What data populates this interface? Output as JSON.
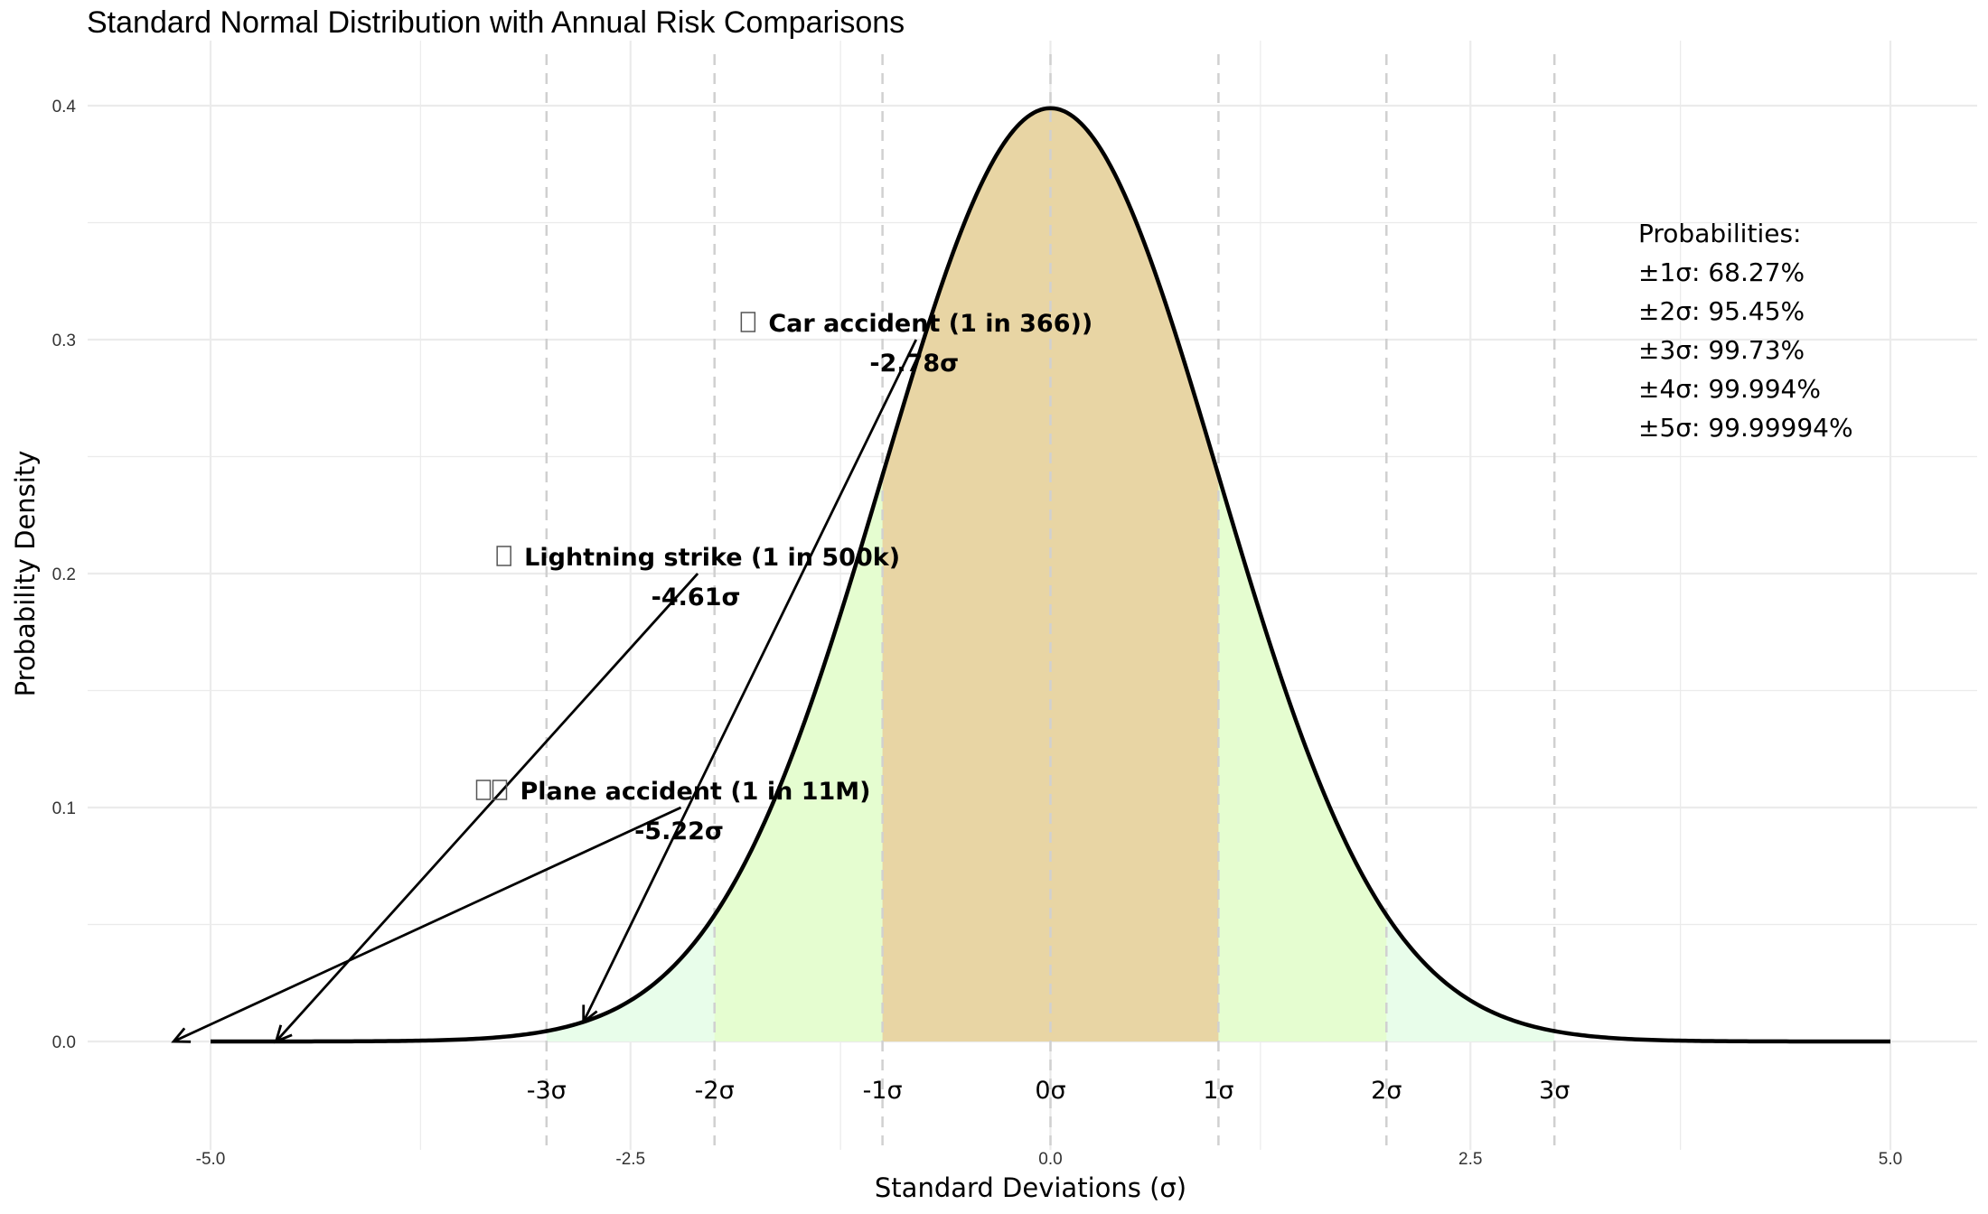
{
  "chart_data": {
    "type": "area",
    "title": "Standard Normal Distribution with Annual Risk Comparisons",
    "xlabel": "Standard Deviations (σ)",
    "ylabel": "Probability Density",
    "xlim": [
      -5,
      5
    ],
    "ylim": [
      0,
      0.4
    ],
    "x_ticks": [
      -5.0,
      -2.5,
      0.0,
      2.5,
      5.0
    ],
    "x_tick_labels": [
      "-5.0",
      "-2.5",
      "0.0",
      "2.5",
      "5.0"
    ],
    "y_ticks": [
      0.0,
      0.1,
      0.2,
      0.3,
      0.4
    ],
    "y_tick_labels": [
      "0.0",
      "0.1",
      "0.2",
      "0.3",
      "0.4"
    ],
    "grid": true,
    "curve": {
      "function": "standard normal pdf",
      "x_range": [
        -5,
        5
      ],
      "peak": 0.3989
    },
    "sigma_markers": [
      {
        "x": -3,
        "label": "-3σ"
      },
      {
        "x": -2,
        "label": "-2σ"
      },
      {
        "x": -1,
        "label": "-1σ"
      },
      {
        "x": 0,
        "label": "0σ"
      },
      {
        "x": 1,
        "label": "1σ"
      },
      {
        "x": 2,
        "label": "2σ"
      },
      {
        "x": 3,
        "label": "3σ"
      }
    ],
    "shaded_bands": [
      {
        "from": -3,
        "to": 3,
        "color": "#e8fdea"
      },
      {
        "from": -2,
        "to": 2,
        "color": "#e5fdd0"
      },
      {
        "from": -1,
        "to": 1,
        "color": "#e8d5a4"
      }
    ],
    "annotations": [
      {
        "icon": "car-icon",
        "label": "Car accident (1 in 366))",
        "sigma_label": "-2.78σ",
        "target_x": -2.78,
        "label_x": -0.8,
        "label_y": 0.3
      },
      {
        "icon": "lightning-icon",
        "label": "Lightning strike (1 in 500k)",
        "sigma_label": "-4.61σ",
        "target_x": -4.61,
        "label_x": -2.1,
        "label_y": 0.2
      },
      {
        "icon": "plane-icon",
        "label": "Plane accident (1 in 11M)",
        "sigma_label": "-5.22σ",
        "target_x": -5.22,
        "label_x": -2.2,
        "label_y": 0.1
      }
    ],
    "probability_box": {
      "heading": "Probabilities:",
      "lines": [
        "±1σ: 68.27%",
        "±2σ: 95.45%",
        "±3σ: 99.73%",
        "±4σ: 99.994%",
        "±5σ: 99.99994%"
      ]
    },
    "colors": {
      "curve": "#000000",
      "grid": "#ebebeb",
      "sigma_line": "#d0d0d0",
      "band_3": "#e8fdea",
      "band_2": "#e5fdd0",
      "band_1": "#e8d5a4"
    }
  }
}
